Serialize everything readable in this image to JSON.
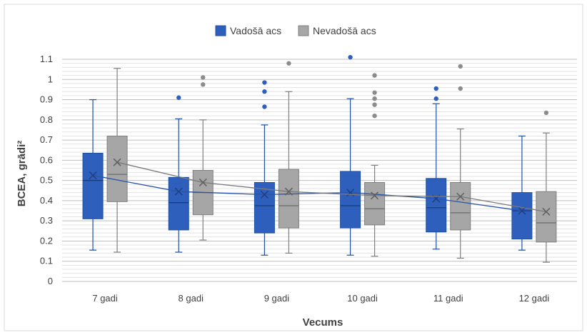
{
  "chart_data": {
    "type": "boxplot",
    "title": "",
    "xlabel": "Vecums",
    "ylabel": "BCEA, grādi²",
    "ylim": [
      0,
      1.1
    ],
    "yticks": [
      0,
      0.1,
      0.2,
      0.3,
      0.4,
      0.5,
      0.6,
      0.7,
      0.8,
      0.9,
      1,
      1.1
    ],
    "ytick_labels": [
      "0",
      "0.1",
      "0.2",
      "0.3",
      "0.4",
      "0.5",
      "0.6",
      "0.7",
      "0.8",
      "0.9",
      "1",
      "1.1"
    ],
    "categories": [
      "7 gadi",
      "8 gadi",
      "9 gadi",
      "10 gadi",
      "11 gadi",
      "12 gadi"
    ],
    "grid": true,
    "legend_position": "top-center",
    "series": [
      {
        "name": "Vadošā acs",
        "color": "#2f5fbd",
        "whisker_low": [
          0.155,
          0.145,
          0.13,
          0.13,
          0.16,
          0.155
        ],
        "q1": [
          0.31,
          0.255,
          0.24,
          0.265,
          0.245,
          0.21
        ],
        "median": [
          0.5,
          0.39,
          0.375,
          0.375,
          0.365,
          0.35
        ],
        "q3": [
          0.635,
          0.515,
          0.49,
          0.545,
          0.51,
          0.44
        ],
        "whisker_high": [
          0.9,
          0.805,
          0.775,
          0.905,
          0.88,
          0.72
        ],
        "mean": [
          0.525,
          0.445,
          0.43,
          0.44,
          0.41,
          0.35
        ],
        "outliers": [
          [],
          [
            0.91
          ],
          [
            0.865,
            0.94,
            0.985
          ],
          [
            1.11
          ],
          [
            0.905,
            0.955
          ],
          []
        ]
      },
      {
        "name": "Nevadošā acs",
        "color": "#a6a6a6",
        "whisker_low": [
          0.145,
          0.205,
          0.14,
          0.125,
          0.115,
          0.095
        ],
        "q1": [
          0.395,
          0.33,
          0.265,
          0.28,
          0.255,
          0.195
        ],
        "median": [
          0.53,
          0.44,
          0.375,
          0.36,
          0.34,
          0.29
        ],
        "q3": [
          0.72,
          0.55,
          0.555,
          0.49,
          0.49,
          0.445
        ],
        "whisker_high": [
          1.055,
          0.8,
          0.94,
          0.575,
          0.755,
          0.735
        ],
        "mean": [
          0.59,
          0.49,
          0.445,
          0.425,
          0.42,
          0.345
        ],
        "outliers": [
          [],
          [
            0.975,
            1.01
          ],
          [
            1.08
          ],
          [
            0.82,
            0.875,
            0.905,
            0.935,
            1.02
          ],
          [
            0.955,
            1.065
          ],
          [
            0.835
          ]
        ]
      }
    ]
  }
}
